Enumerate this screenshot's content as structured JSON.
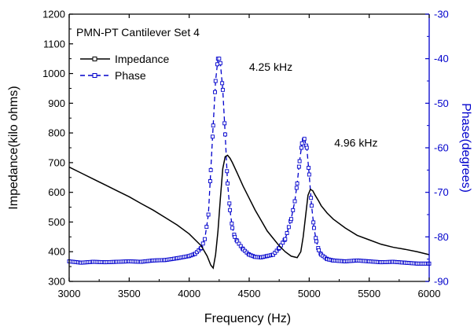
{
  "chart_data": {
    "type": "line",
    "title": "PMN-PT Cantilever Set 4",
    "xlabel": "Frequency (Hz)",
    "ylabel_left": "Impedance(kilo ohms)",
    "ylabel_right": "Phase(degrees)",
    "xlim": [
      3000,
      6000
    ],
    "ylim_left": [
      300,
      1200
    ],
    "ylim_right": [
      -90,
      -30
    ],
    "x_ticks": [
      3000,
      3500,
      4000,
      4500,
      5000,
      5500,
      6000
    ],
    "y_left_ticks": [
      300,
      400,
      500,
      600,
      700,
      800,
      900,
      1000,
      1100,
      1200
    ],
    "y_right_ticks": [
      -90,
      -80,
      -70,
      -60,
      -50,
      -40,
      -30
    ],
    "grid": false,
    "legend_position": "top-left",
    "colors": {
      "impedance": "#000000",
      "phase": "#0000cc"
    },
    "annotations": [
      {
        "text": "4.25 kHz",
        "x": 4250,
        "y_right": -42
      },
      {
        "text": "4.96 kHz",
        "x": 4960,
        "y_right": -59
      }
    ],
    "series": [
      {
        "name": "Impedance",
        "axis": "left",
        "x": [
          3000,
          3100,
          3200,
          3300,
          3400,
          3500,
          3600,
          3700,
          3800,
          3900,
          4000,
          4100,
          4150,
          4180,
          4200,
          4220,
          4240,
          4260,
          4280,
          4300,
          4320,
          4340,
          4360,
          4400,
          4450,
          4500,
          4550,
          4600,
          4650,
          4700,
          4750,
          4800,
          4850,
          4900,
          4930,
          4950,
          4970,
          4990,
          5010,
          5030,
          5050,
          5080,
          5100,
          5150,
          5200,
          5300,
          5400,
          5500,
          5600,
          5700,
          5800,
          5900,
          6000
        ],
        "values": [
          685,
          665,
          645,
          625,
          605,
          585,
          562,
          540,
          515,
          490,
          460,
          420,
          385,
          355,
          345,
          390,
          470,
          580,
          680,
          720,
          725,
          715,
          700,
          665,
          620,
          580,
          540,
          505,
          470,
          445,
          420,
          400,
          385,
          380,
          400,
          450,
          520,
          590,
          610,
          605,
          590,
          570,
          555,
          530,
          510,
          480,
          455,
          440,
          425,
          415,
          408,
          400,
          390
        ]
      },
      {
        "name": "Phase",
        "axis": "right",
        "x": [
          3000,
          3100,
          3200,
          3300,
          3400,
          3500,
          3600,
          3700,
          3800,
          3900,
          4000,
          4050,
          4100,
          4130,
          4160,
          4180,
          4200,
          4220,
          4240,
          4250,
          4260,
          4280,
          4300,
          4320,
          4340,
          4360,
          4380,
          4400,
          4450,
          4500,
          4550,
          4600,
          4650,
          4700,
          4750,
          4800,
          4850,
          4880,
          4900,
          4920,
          4940,
          4960,
          4980,
          5000,
          5020,
          5040,
          5060,
          5080,
          5100,
          5150,
          5200,
          5300,
          5400,
          5500,
          5600,
          5700,
          5800,
          5900,
          6000
        ],
        "values": [
          -85.5,
          -85.8,
          -85.6,
          -85.7,
          -85.6,
          -85.5,
          -85.6,
          -85.3,
          -85.2,
          -84.8,
          -84.3,
          -83.8,
          -82.5,
          -80.5,
          -75,
          -65,
          -55,
          -45,
          -40,
          -40,
          -41,
          -47,
          -57,
          -68,
          -74,
          -78,
          -80,
          -81,
          -82.8,
          -84,
          -84.5,
          -84.6,
          -84.3,
          -84,
          -82.5,
          -80.5,
          -76,
          -72,
          -68,
          -63,
          -59,
          -58,
          -60,
          -66,
          -73,
          -78,
          -81,
          -83,
          -84,
          -85,
          -85.3,
          -85.5,
          -85.3,
          -85.5,
          -85.7,
          -85.6,
          -85.8,
          -86,
          -86
        ]
      }
    ]
  }
}
